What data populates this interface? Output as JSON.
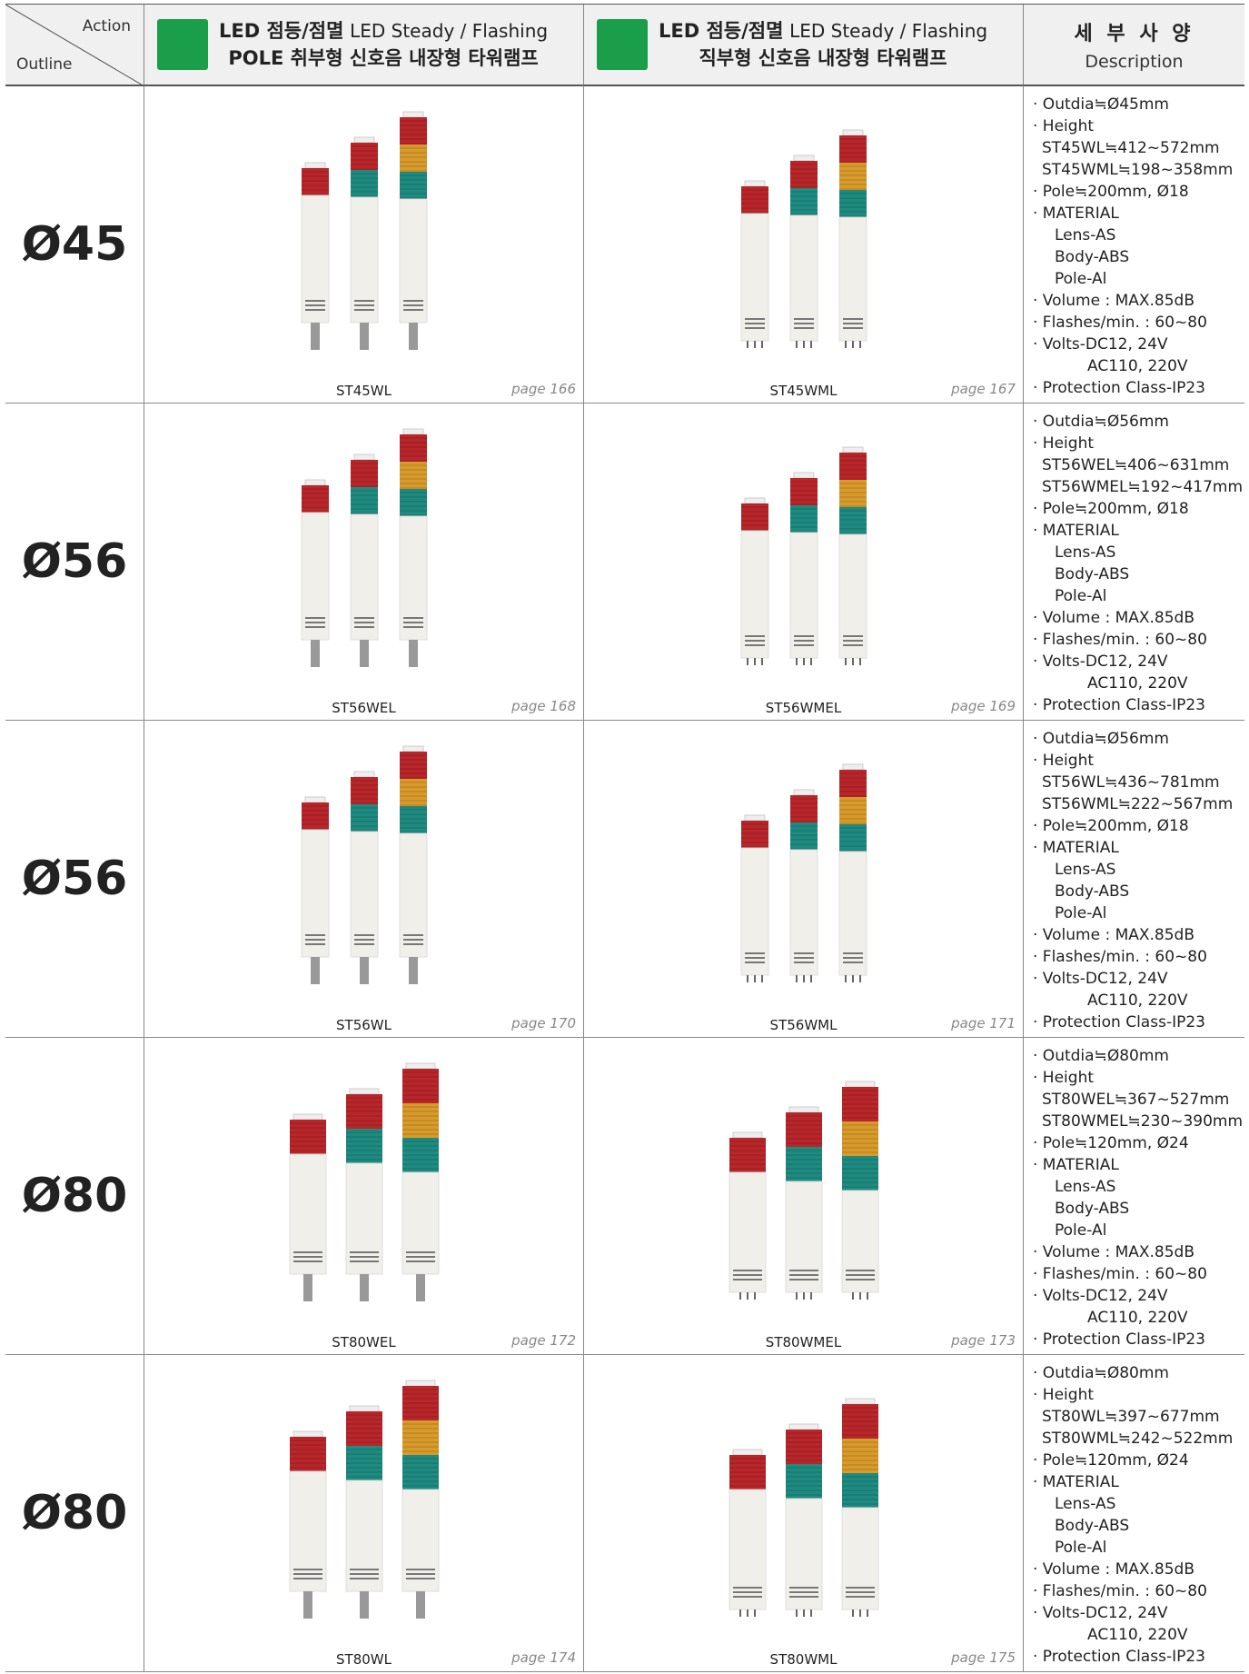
{
  "header": {
    "action": "Action",
    "outline": "Outline",
    "col1": {
      "bold": "LED 점등/점멸",
      "en": "LED Steady / Flashing",
      "line2": "POLE 취부형 신호음 내장형 타워램프"
    },
    "col2": {
      "bold": "LED 점등/점멸",
      "en": "LED Steady / Flashing",
      "line2": "직부형 신호음 내장형 타워램프"
    },
    "desc_ko": "세 부 사 양",
    "desc_en": "Description"
  },
  "rows": [
    {
      "size": "Ø45",
      "products": [
        {
          "model": "ST45WL",
          "page": "page 166"
        },
        {
          "model": "ST45WML",
          "page": "page 167"
        }
      ],
      "description": [
        "· Outdia≒Ø45mm",
        "· Height",
        "ST45WL≒412~572mm",
        "ST45WML≒198~358mm",
        "· Pole≒200mm, Ø18",
        "· MATERIAL",
        "Lens-AS",
        "Body-ABS",
        "Pole-Al",
        "· Volume : MAX.85dB",
        "· Flashes/min. : 60~80",
        "· Volts-DC12, 24V",
        "AC110, 220V",
        "· Protection Class-IP23"
      ]
    },
    {
      "size": "Ø56",
      "products": [
        {
          "model": "ST56WEL",
          "page": "page 168"
        },
        {
          "model": "ST56WMEL",
          "page": "page 169"
        }
      ],
      "description": [
        "· Outdia≒Ø56mm",
        "· Height",
        "ST56WEL≒406~631mm",
        "ST56WMEL≒192~417mm",
        "· Pole≒200mm, Ø18",
        "· MATERIAL",
        "Lens-AS",
        "Body-ABS",
        "Pole-Al",
        "· Volume : MAX.85dB",
        "· Flashes/min. : 60~80",
        "· Volts-DC12, 24V",
        "AC110, 220V",
        "· Protection Class-IP23"
      ]
    },
    {
      "size": "Ø56",
      "products": [
        {
          "model": "ST56WL",
          "page": "page 170"
        },
        {
          "model": "ST56WML",
          "page": "page 171"
        }
      ],
      "description": [
        "· Outdia≒Ø56mm",
        "· Height",
        "ST56WL≒436~781mm",
        "ST56WML≒222~567mm",
        "· Pole≒200mm, Ø18",
        "· MATERIAL",
        "Lens-AS",
        "Body-ABS",
        "Pole-Al",
        "· Volume : MAX.85dB",
        "· Flashes/min. : 60~80",
        "· Volts-DC12, 24V",
        "AC110, 220V",
        "· Protection Class-IP23"
      ]
    },
    {
      "size": "Ø80",
      "products": [
        {
          "model": "ST80WEL",
          "page": "page 172"
        },
        {
          "model": "ST80WMEL",
          "page": "page 173"
        }
      ],
      "description": [
        "· Outdia≒Ø80mm",
        "· Height",
        "ST80WEL≒367~527mm",
        "ST80WMEL≒230~390mm",
        "· Pole≒120mm, Ø24",
        "· MATERIAL",
        "Lens-AS",
        "Body-ABS",
        "Pole-Al",
        "· Volume : MAX.85dB",
        "· Flashes/min. : 60~80",
        "· Volts-DC12, 24V",
        "AC110, 220V",
        "· Protection Class-IP23"
      ]
    },
    {
      "size": "Ø80",
      "products": [
        {
          "model": "ST80WL",
          "page": "page 174"
        },
        {
          "model": "ST80WML",
          "page": "page 175"
        }
      ],
      "description": [
        "· Outdia≒Ø80mm",
        "· Height",
        "ST80WL≒397~677mm",
        "ST80WML≒242~522mm",
        "· Pole≒120mm, Ø24",
        "· MATERIAL",
        "Lens-AS",
        "Body-ABS",
        "Pole-Al",
        "· Volume : MAX.85dB",
        "· Flashes/min. : 60~80",
        "· Volts-DC12, 24V",
        "AC110, 220V",
        "· Protection Class-IP23"
      ]
    }
  ]
}
